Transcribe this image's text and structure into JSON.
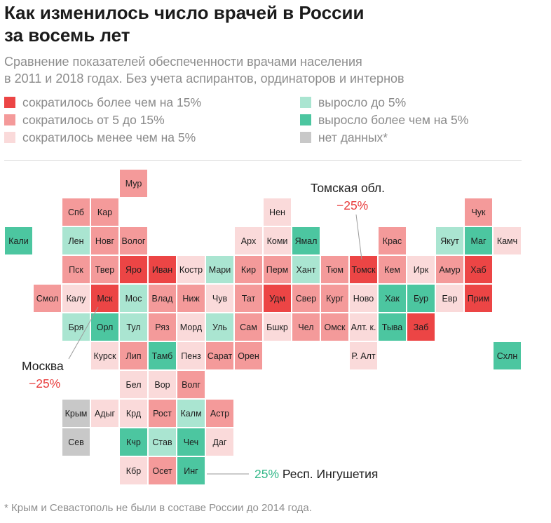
{
  "header": {
    "title_line1": "Как изменилось число врачей в России",
    "title_line2": "за восемь лет",
    "subtitle_line1": "Сравнение показателей обеспеченности врачами населения",
    "subtitle_line2": "в 2011 и 2018 годах. Без учета аспирантов, ординаторов и интернов"
  },
  "colors": {
    "dec_gt15": "#ec4545",
    "dec_5_15": "#f49a9a",
    "dec_lt5": "#fadada",
    "inc_lt5": "#aae5d1",
    "inc_gt5": "#4cc6a0",
    "no_data": "#c8c8c8",
    "callout_neg": "#e83b3b",
    "callout_pos": "#33b889"
  },
  "legend": [
    {
      "key": "dec_gt15",
      "label": "сократилось более чем на 15%"
    },
    {
      "key": "dec_5_15",
      "label": "сократилось от 5 до 15%"
    },
    {
      "key": "dec_lt5",
      "label": "сократилось менее чем на 5%"
    },
    {
      "key": "inc_lt5",
      "label": "выросло до 5%"
    },
    {
      "key": "inc_gt5",
      "label": "выросло более чем на 5%"
    },
    {
      "key": "no_data",
      "label": "нет данных*"
    }
  ],
  "regions": [
    {
      "label": "Мур",
      "col": 4,
      "row": 0,
      "cat": "dec_5_15"
    },
    {
      "label": "Спб",
      "col": 2,
      "row": 1,
      "cat": "dec_5_15"
    },
    {
      "label": "Кар",
      "col": 3,
      "row": 1,
      "cat": "dec_5_15"
    },
    {
      "label": "Нен",
      "col": 9,
      "row": 1,
      "cat": "dec_lt5"
    },
    {
      "label": "Чук",
      "col": 16,
      "row": 1,
      "cat": "dec_5_15"
    },
    {
      "label": "Кали",
      "col": 0,
      "row": 2,
      "cat": "inc_gt5"
    },
    {
      "label": "Лен",
      "col": 2,
      "row": 2,
      "cat": "inc_lt5"
    },
    {
      "label": "Новг",
      "col": 3,
      "row": 2,
      "cat": "dec_5_15"
    },
    {
      "label": "Волог",
      "col": 4,
      "row": 2,
      "cat": "dec_5_15"
    },
    {
      "label": "Арх",
      "col": 8,
      "row": 2,
      "cat": "dec_lt5"
    },
    {
      "label": "Коми",
      "col": 9,
      "row": 2,
      "cat": "dec_lt5"
    },
    {
      "label": "Ямал",
      "col": 10,
      "row": 2,
      "cat": "inc_gt5"
    },
    {
      "label": "Крас",
      "col": 13,
      "row": 2,
      "cat": "dec_5_15"
    },
    {
      "label": "Якут",
      "col": 15,
      "row": 2,
      "cat": "inc_lt5"
    },
    {
      "label": "Маг",
      "col": 16,
      "row": 2,
      "cat": "inc_gt5"
    },
    {
      "label": "Камч",
      "col": 17,
      "row": 2,
      "cat": "dec_lt5"
    },
    {
      "label": "Пск",
      "col": 2,
      "row": 3,
      "cat": "dec_5_15"
    },
    {
      "label": "Твер",
      "col": 3,
      "row": 3,
      "cat": "dec_5_15"
    },
    {
      "label": "Яро",
      "col": 4,
      "row": 3,
      "cat": "dec_gt15"
    },
    {
      "label": "Иван",
      "col": 5,
      "row": 3,
      "cat": "dec_gt15"
    },
    {
      "label": "Костр",
      "col": 6,
      "row": 3,
      "cat": "dec_lt5"
    },
    {
      "label": "Мари",
      "col": 7,
      "row": 3,
      "cat": "inc_lt5"
    },
    {
      "label": "Кир",
      "col": 8,
      "row": 3,
      "cat": "dec_5_15"
    },
    {
      "label": "Перм",
      "col": 9,
      "row": 3,
      "cat": "dec_5_15"
    },
    {
      "label": "Хант",
      "col": 10,
      "row": 3,
      "cat": "inc_lt5"
    },
    {
      "label": "Тюм",
      "col": 11,
      "row": 3,
      "cat": "dec_5_15"
    },
    {
      "label": "Томск",
      "col": 12,
      "row": 3,
      "cat": "dec_gt15"
    },
    {
      "label": "Кем",
      "col": 13,
      "row": 3,
      "cat": "dec_5_15"
    },
    {
      "label": "Ирк",
      "col": 14,
      "row": 3,
      "cat": "dec_lt5"
    },
    {
      "label": "Амур",
      "col": 15,
      "row": 3,
      "cat": "dec_5_15"
    },
    {
      "label": "Хаб",
      "col": 16,
      "row": 3,
      "cat": "dec_gt15"
    },
    {
      "label": "Смол",
      "col": 1,
      "row": 4,
      "cat": "dec_5_15"
    },
    {
      "label": "Калу",
      "col": 2,
      "row": 4,
      "cat": "dec_lt5"
    },
    {
      "label": "Мск",
      "col": 3,
      "row": 4,
      "cat": "dec_gt15"
    },
    {
      "label": "Мос",
      "col": 4,
      "row": 4,
      "cat": "inc_lt5"
    },
    {
      "label": "Влад",
      "col": 5,
      "row": 4,
      "cat": "dec_5_15"
    },
    {
      "label": "Ниж",
      "col": 6,
      "row": 4,
      "cat": "dec_5_15"
    },
    {
      "label": "Чув",
      "col": 7,
      "row": 4,
      "cat": "dec_lt5"
    },
    {
      "label": "Тат",
      "col": 8,
      "row": 4,
      "cat": "dec_5_15"
    },
    {
      "label": "Удм",
      "col": 9,
      "row": 4,
      "cat": "dec_gt15"
    },
    {
      "label": "Свер",
      "col": 10,
      "row": 4,
      "cat": "dec_5_15"
    },
    {
      "label": "Кург",
      "col": 11,
      "row": 4,
      "cat": "dec_5_15"
    },
    {
      "label": "Ново",
      "col": 12,
      "row": 4,
      "cat": "dec_lt5"
    },
    {
      "label": "Хак",
      "col": 13,
      "row": 4,
      "cat": "inc_gt5"
    },
    {
      "label": "Бур",
      "col": 14,
      "row": 4,
      "cat": "inc_gt5"
    },
    {
      "label": "Евр",
      "col": 15,
      "row": 4,
      "cat": "dec_lt5"
    },
    {
      "label": "Прим",
      "col": 16,
      "row": 4,
      "cat": "dec_gt15"
    },
    {
      "label": "Бря",
      "col": 2,
      "row": 5,
      "cat": "inc_lt5"
    },
    {
      "label": "Орл",
      "col": 3,
      "row": 5,
      "cat": "inc_gt5"
    },
    {
      "label": "Тул",
      "col": 4,
      "row": 5,
      "cat": "inc_lt5"
    },
    {
      "label": "Ряз",
      "col": 5,
      "row": 5,
      "cat": "dec_5_15"
    },
    {
      "label": "Морд",
      "col": 6,
      "row": 5,
      "cat": "dec_lt5"
    },
    {
      "label": "Уль",
      "col": 7,
      "row": 5,
      "cat": "inc_lt5"
    },
    {
      "label": "Сам",
      "col": 8,
      "row": 5,
      "cat": "dec_5_15"
    },
    {
      "label": "Бшкр",
      "col": 9,
      "row": 5,
      "cat": "dec_lt5"
    },
    {
      "label": "Чел",
      "col": 10,
      "row": 5,
      "cat": "dec_5_15"
    },
    {
      "label": "Омск",
      "col": 11,
      "row": 5,
      "cat": "dec_5_15"
    },
    {
      "label": "Алт. к.",
      "col": 12,
      "row": 5,
      "cat": "dec_lt5"
    },
    {
      "label": "Тыва",
      "col": 13,
      "row": 5,
      "cat": "inc_gt5"
    },
    {
      "label": "Заб",
      "col": 14,
      "row": 5,
      "cat": "dec_gt15"
    },
    {
      "label": "Курск",
      "col": 3,
      "row": 6,
      "cat": "dec_lt5"
    },
    {
      "label": "Лип",
      "col": 4,
      "row": 6,
      "cat": "dec_5_15"
    },
    {
      "label": "Тамб",
      "col": 5,
      "row": 6,
      "cat": "inc_gt5"
    },
    {
      "label": "Пенз",
      "col": 6,
      "row": 6,
      "cat": "dec_lt5"
    },
    {
      "label": "Сарат",
      "col": 7,
      "row": 6,
      "cat": "dec_5_15"
    },
    {
      "label": "Орен",
      "col": 8,
      "row": 6,
      "cat": "dec_5_15"
    },
    {
      "label": "Р. Алт",
      "col": 12,
      "row": 6,
      "cat": "dec_lt5"
    },
    {
      "label": "Схлн",
      "col": 17,
      "row": 6,
      "cat": "inc_gt5"
    },
    {
      "label": "Бел",
      "col": 4,
      "row": 7,
      "cat": "dec_lt5"
    },
    {
      "label": "Вор",
      "col": 5,
      "row": 7,
      "cat": "dec_lt5"
    },
    {
      "label": "Волг",
      "col": 6,
      "row": 7,
      "cat": "dec_5_15"
    },
    {
      "label": "Крым",
      "col": 2,
      "row": 8,
      "cat": "no_data"
    },
    {
      "label": "Адыг",
      "col": 3,
      "row": 8,
      "cat": "dec_lt5"
    },
    {
      "label": "Крд",
      "col": 4,
      "row": 8,
      "cat": "dec_lt5"
    },
    {
      "label": "Рост",
      "col": 5,
      "row": 8,
      "cat": "dec_5_15"
    },
    {
      "label": "Калм",
      "col": 6,
      "row": 8,
      "cat": "inc_lt5"
    },
    {
      "label": "Астр",
      "col": 7,
      "row": 8,
      "cat": "dec_5_15"
    },
    {
      "label": "Сев",
      "col": 2,
      "row": 9,
      "cat": "no_data"
    },
    {
      "label": "Кчр",
      "col": 4,
      "row": 9,
      "cat": "inc_gt5"
    },
    {
      "label": "Став",
      "col": 5,
      "row": 9,
      "cat": "inc_lt5"
    },
    {
      "label": "Чеч",
      "col": 6,
      "row": 9,
      "cat": "inc_gt5"
    },
    {
      "label": "Даг",
      "col": 7,
      "row": 9,
      "cat": "dec_lt5"
    },
    {
      "label": "Кбр",
      "col": 4,
      "row": 10,
      "cat": "dec_lt5"
    },
    {
      "label": "Осет",
      "col": 5,
      "row": 10,
      "cat": "dec_5_15"
    },
    {
      "label": "Инг",
      "col": 6,
      "row": 10,
      "cat": "inc_gt5"
    }
  ],
  "callouts": {
    "tomsk": {
      "label": "Томская обл.",
      "value": "−25%"
    },
    "moscow": {
      "label": "Москва",
      "value": "−25%"
    },
    "ingushetia": {
      "value": "25%",
      "label": "Респ. Ингушетия"
    }
  },
  "footnote": "* Крым и Севастополь не были в составе России до 2014 года."
}
